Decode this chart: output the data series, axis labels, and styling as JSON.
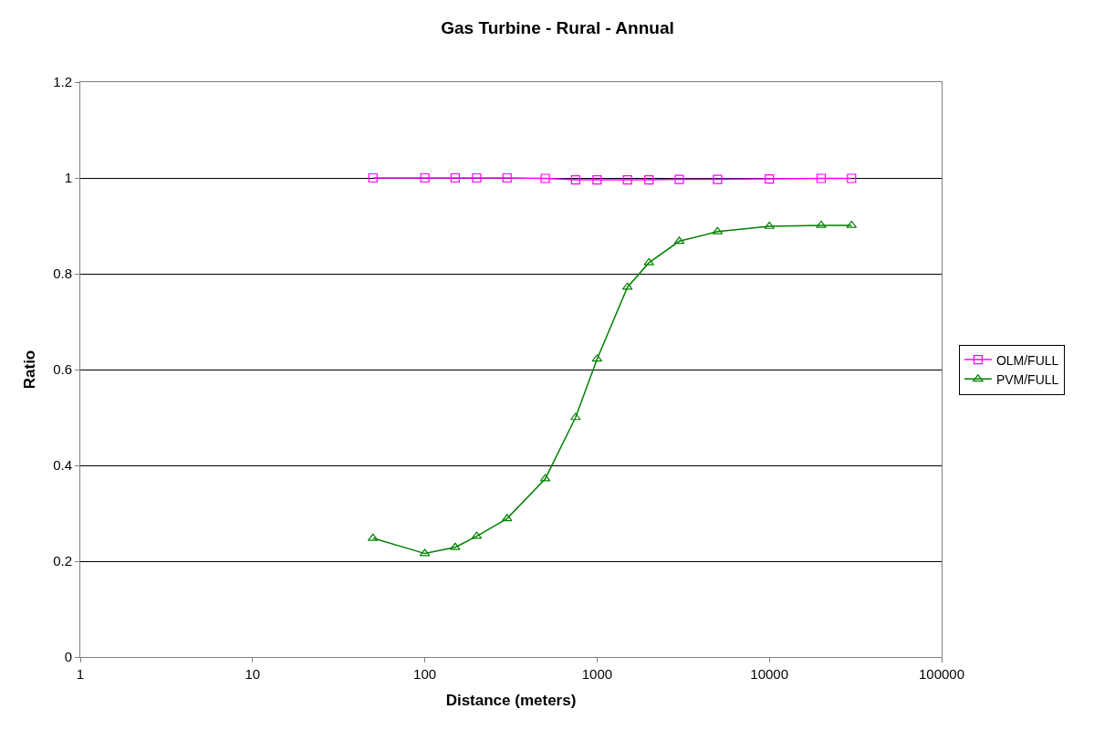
{
  "chart_data": {
    "type": "line",
    "title": "Gas Turbine - Rural - Annual",
    "xlabel": "Distance (meters)",
    "ylabel": "Ratio",
    "x": [
      50,
      100,
      150,
      200,
      300,
      500,
      750,
      1000,
      1500,
      2000,
      3000,
      5000,
      10000,
      20000,
      30000
    ],
    "series": [
      {
        "name": "OLM/FULL",
        "color": "#ff00ff",
        "marker": "square",
        "values": [
          1.0,
          1.0,
          1.0,
          1.0,
          1.0,
          0.999,
          0.996,
          0.996,
          0.996,
          0.996,
          0.997,
          0.997,
          0.998,
          0.999,
          0.999
        ]
      },
      {
        "name": "PVM/FULL",
        "color": "#008000",
        "marker": "triangle",
        "values": [
          0.248,
          0.216,
          0.229,
          0.252,
          0.289,
          0.372,
          0.5,
          0.622,
          0.772,
          0.823,
          0.868,
          0.888,
          0.899,
          0.901,
          0.901
        ]
      }
    ],
    "log": "x",
    "xlim": [
      1,
      100000
    ],
    "xticks": [
      1,
      10,
      100,
      1000,
      10000,
      100000
    ],
    "ylim": [
      0,
      1.2
    ],
    "yticks": [
      0,
      0.2,
      0.4,
      0.6,
      0.8,
      1,
      1.2
    ],
    "grid": "y",
    "legend": "right",
    "line_style": "solid"
  }
}
